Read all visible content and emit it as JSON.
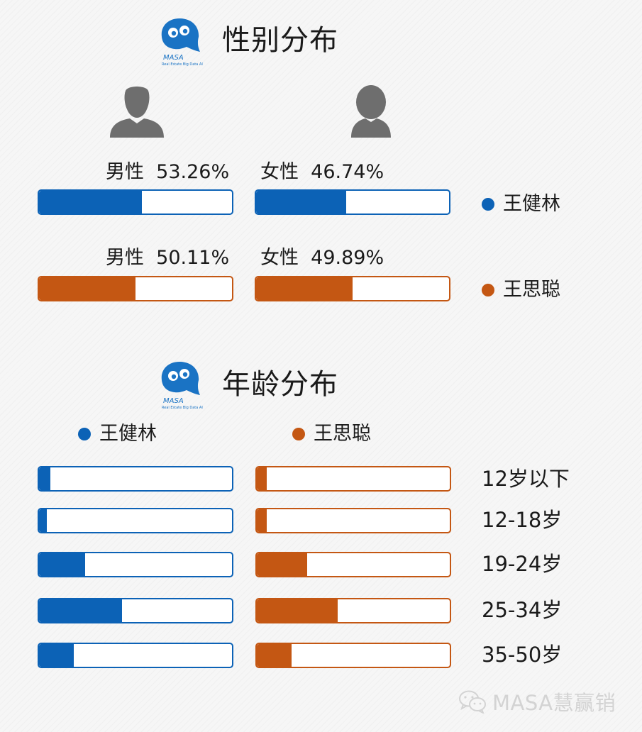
{
  "colors": {
    "wang_jianlin": "#0c62b6",
    "wang_sicong": "#c45713",
    "avatar": "#6e6e6e"
  },
  "logo": {
    "brand": "MASA",
    "tagline": "Real Estate Big Data AI"
  },
  "gender_section": {
    "title": "性别分布",
    "rows": [
      {
        "person": "王健林",
        "male_text": "男性  53.26%",
        "female_text": "女性  46.74%"
      },
      {
        "person": "王思聪",
        "male_text": "男性  50.11%",
        "female_text": "女性  49.89%"
      }
    ]
  },
  "age_section": {
    "title": "年龄分布",
    "legend": [
      "王健林",
      "王思聪"
    ]
  },
  "chart_data": [
    {
      "type": "bar",
      "title": "性别分布",
      "categories": [
        "男性",
        "女性"
      ],
      "series": [
        {
          "name": "王健林",
          "values": [
            53.26,
            46.74
          ]
        },
        {
          "name": "王思聪",
          "values": [
            50.11,
            49.89
          ]
        }
      ]
    },
    {
      "type": "bar",
      "title": "年龄分布",
      "categories": [
        "12岁以下",
        "12-18岁",
        "19-24岁",
        "25-34岁",
        "35-50岁"
      ],
      "series": [
        {
          "name": "王健林",
          "values": [
            6,
            4,
            24,
            43,
            18
          ]
        },
        {
          "name": "王思聪",
          "values": [
            5,
            5,
            26,
            42,
            18
          ]
        }
      ]
    }
  ],
  "watermark": "MASA慧赢销"
}
